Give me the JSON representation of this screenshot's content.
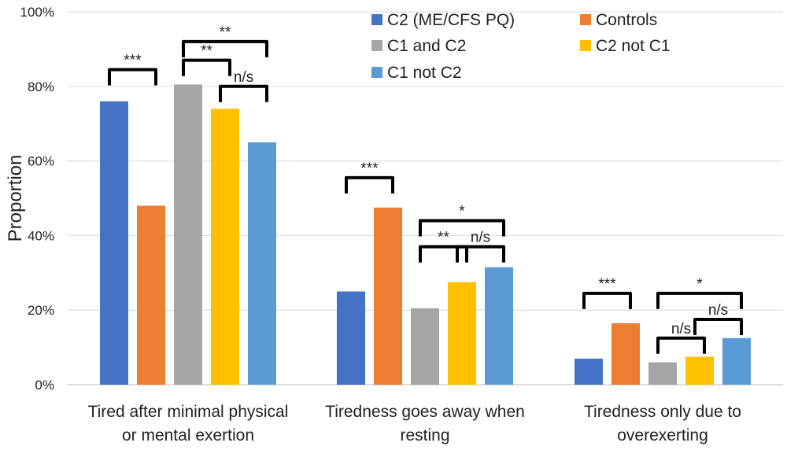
{
  "chart_data": {
    "type": "bar",
    "ylabel": "Proportion",
    "xlabel": "",
    "ylim": [
      0,
      100
    ],
    "yticks": [
      "0%",
      "20%",
      "40%",
      "60%",
      "80%",
      "100%"
    ],
    "grid": true,
    "legend_position": "top-right",
    "categories": [
      [
        "Tired after minimal physical",
        "or mental exertion"
      ],
      [
        "Tiredness goes away when",
        "resting"
      ],
      [
        "Tiredness only due to",
        "overexerting"
      ]
    ],
    "series": [
      {
        "name": "C2 (ME/CFS PQ)",
        "color": "#4472C4",
        "values": [
          76,
          25,
          7
        ]
      },
      {
        "name": "Controls",
        "color": "#ED7D31",
        "values": [
          48,
          47.5,
          16.5
        ]
      },
      {
        "name": "C1 and C2",
        "color": "#A5A5A5",
        "values": [
          80.5,
          20.5,
          6
        ]
      },
      {
        "name": "C2 not C1",
        "color": "#FFC000",
        "values": [
          74,
          27.5,
          7.5
        ]
      },
      {
        "name": "C1 not C2",
        "color": "#5B9BD5",
        "values": [
          65,
          31.5,
          12.5
        ]
      }
    ],
    "annotations": [
      {
        "category": 0,
        "from": 0,
        "to": 1,
        "label": "***",
        "y": 84.5
      },
      {
        "category": 0,
        "from": 2,
        "to": 3,
        "label": "**",
        "y": 87
      },
      {
        "category": 0,
        "from": 3,
        "to": 4,
        "label": "n/s",
        "y": 80
      },
      {
        "category": 0,
        "from": 2,
        "to": 4,
        "label": "**",
        "y": 92
      },
      {
        "category": 1,
        "from": 0,
        "to": 1,
        "label": "***",
        "y": 55.5
      },
      {
        "category": 1,
        "from": 2,
        "to": 3,
        "label": "**",
        "y": 37
      },
      {
        "category": 1,
        "from": 3,
        "to": 4,
        "label": "n/s",
        "y": 37
      },
      {
        "category": 1,
        "from": 2,
        "to": 4,
        "label": "*",
        "y": 44
      },
      {
        "category": 2,
        "from": 0,
        "to": 1,
        "label": "***",
        "y": 24.5
      },
      {
        "category": 2,
        "from": 2,
        "to": 3,
        "label": "n/s",
        "y": 12.5
      },
      {
        "category": 2,
        "from": 3,
        "to": 4,
        "label": "n/s",
        "y": 17.5
      },
      {
        "category": 2,
        "from": 2,
        "to": 4,
        "label": "*",
        "y": 24.5
      }
    ]
  }
}
